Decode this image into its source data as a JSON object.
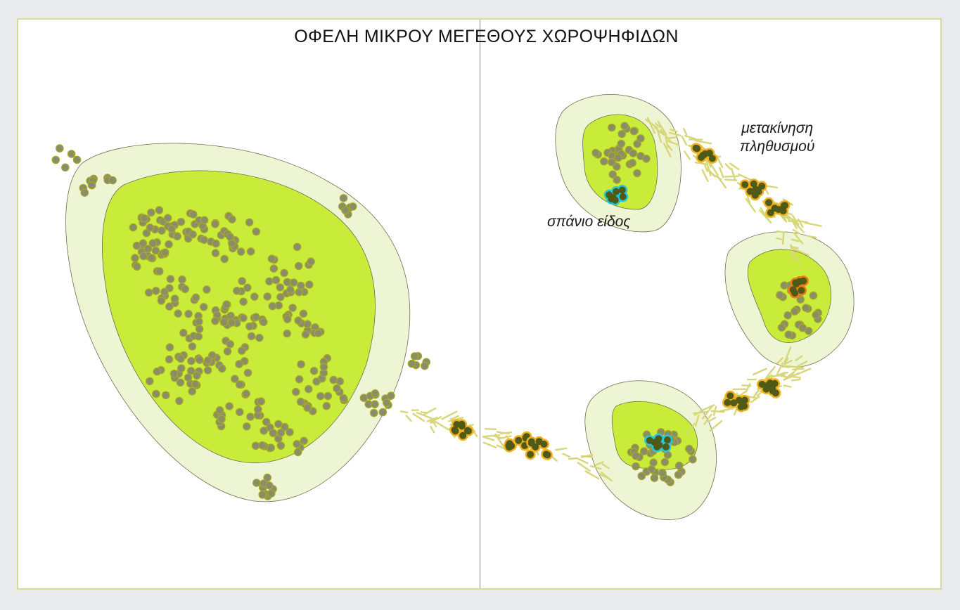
{
  "title": "ΟΦΕΛΗ ΜΙΚΡΟΥ ΜΕΓΕΘΟΥΣ ΧΩΡΟΨΗΦΙΔΩΝ",
  "labels": {
    "rare_species": "σπάνιο είδος",
    "population_movement_line1": "μετακίνηση",
    "population_movement_line2": "πληθυσμού"
  },
  "colors": {
    "background": "#e9eaec",
    "panel": "#ffffff",
    "panel_border": "#d3dc98",
    "buffer_zone": "#eef5d4",
    "core_zone": "#c9ec3a",
    "population_dot": "#8a8d6a",
    "dot_outline": "#a8a824",
    "corridor_stroke": "#d7d77a",
    "corridor_patch_fill": "#4f5a16",
    "corridor_patch_outline": "#f0b020",
    "rare_species_outline": "#22c7e0",
    "special_patch_outline": "#f07a18"
  }
}
